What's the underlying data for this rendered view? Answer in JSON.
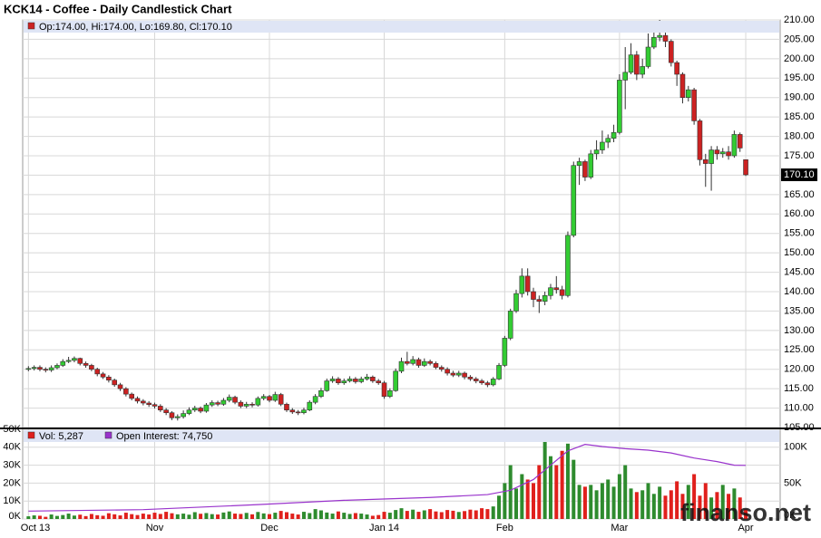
{
  "chart_data": [
    {
      "type": "candlestick",
      "title": "KCK14 - Coffee - Daily Candlestick Chart",
      "ohlc_label": "Op:174.00, Hi:174.00, Lo:169.80, Cl:170.10",
      "last_label": "170.10",
      "up_color": "#33cc33",
      "down_color": "#cc2222",
      "ylim": [
        105,
        210
      ],
      "yticks": [
        {
          "value": 105,
          "label": "105.00"
        },
        {
          "value": 110,
          "label": "110.00"
        },
        {
          "value": 115,
          "label": "115.00"
        },
        {
          "value": 120,
          "label": "120.00"
        },
        {
          "value": 125,
          "label": "125.00"
        },
        {
          "value": 130,
          "label": "130.00"
        },
        {
          "value": 135,
          "label": "135.00"
        },
        {
          "value": 140,
          "label": "140.00"
        },
        {
          "value": 145,
          "label": "145.00"
        },
        {
          "value": 150,
          "label": "150.00"
        },
        {
          "value": 155,
          "label": "155.00"
        },
        {
          "value": 160,
          "label": "160.00"
        },
        {
          "value": 165,
          "label": "165.00"
        },
        {
          "value": 170,
          "label": "170.00"
        },
        {
          "value": 175,
          "label": "175.00"
        },
        {
          "value": 180,
          "label": "180.00"
        },
        {
          "value": 185,
          "label": "185.00"
        },
        {
          "value": 190,
          "label": "190.00"
        },
        {
          "value": 195,
          "label": "195.00"
        },
        {
          "value": 200,
          "label": "200.00"
        },
        {
          "value": 205,
          "label": "205.00"
        },
        {
          "value": 210,
          "label": "210.00"
        }
      ],
      "grid": true,
      "open": [
        120.0,
        120.2,
        120.5,
        120.0,
        119.8,
        120.4,
        121.0,
        122.0,
        122.3,
        122.8,
        121.5,
        121.0,
        120.0,
        118.8,
        118.0,
        117.2,
        116.0,
        115.0,
        113.6,
        112.5,
        111.8,
        111.3,
        110.9,
        110.5,
        109.5,
        108.8,
        107.5,
        107.8,
        108.6,
        109.5,
        110.0,
        109.2,
        110.8,
        111.4,
        111.0,
        112.0,
        112.8,
        111.5,
        110.5,
        111.0,
        110.8,
        112.5,
        113.0,
        112.0,
        113.5,
        111.0,
        109.5,
        109.0,
        108.8,
        109.5,
        111.5,
        113.0,
        114.5,
        117.0,
        117.5,
        116.5,
        117.0,
        117.5,
        116.8,
        117.5,
        118.0,
        117.0,
        116.5,
        113.0,
        114.5,
        119.5,
        122.0,
        121.5,
        122.5,
        121.0,
        122.0,
        121.5,
        120.5,
        120.0,
        119.0,
        118.5,
        119.0,
        118.0,
        117.5,
        117.0,
        116.5,
        116.0,
        117.5,
        121.0,
        128.0,
        135.0,
        139.5,
        144.0,
        140.0,
        138.0,
        137.5,
        139.0,
        141.0,
        140.5,
        139.0,
        154.5,
        172.5,
        173.5,
        169.5,
        175.5,
        176.5,
        178.5,
        179.5,
        181.0,
        194.5,
        196.5,
        201.0,
        196.0,
        198.0,
        203.0,
        205.5,
        206.0,
        204.5,
        199.0,
        196.0,
        190.0,
        192.0,
        184.0,
        174.0,
        173.0,
        176.5,
        175.5,
        176.0,
        175.0,
        180.5,
        174.0
      ],
      "high": [
        120.8,
        121.0,
        121.0,
        120.5,
        121.0,
        121.5,
        122.6,
        123.2,
        123.3,
        123.0,
        122.0,
        121.4,
        120.4,
        119.3,
        118.5,
        117.6,
        116.5,
        115.4,
        114.0,
        113.0,
        112.3,
        111.8,
        111.4,
        111.0,
        110.0,
        109.2,
        108.4,
        109.4,
        110.2,
        110.6,
        110.4,
        111.3,
        112.0,
        111.9,
        112.6,
        113.5,
        113.2,
        112.0,
        111.6,
        111.5,
        113.0,
        113.6,
        113.4,
        114.2,
        113.9,
        111.4,
        110.0,
        109.5,
        110.1,
        112.0,
        113.6,
        115.2,
        117.6,
        118.2,
        118.0,
        117.6,
        118.2,
        118.0,
        118.1,
        118.8,
        118.4,
        117.5,
        117.0,
        115.1,
        120.2,
        123.0,
        124.5,
        123.4,
        123.0,
        122.8,
        122.5,
        122.0,
        121.0,
        120.5,
        119.6,
        119.6,
        119.4,
        118.5,
        118.0,
        117.5,
        117.0,
        118.0,
        121.6,
        128.6,
        135.6,
        140.5,
        146.0,
        146.0,
        141.0,
        139.0,
        140.0,
        142.0,
        144.0,
        141.5,
        155.5,
        173.5,
        174.5,
        174.0,
        176.5,
        179.0,
        181.5,
        180.5,
        183.0,
        196.0,
        203.0,
        204.0,
        202.0,
        200.0,
        206.5,
        209.0,
        210.0,
        207.0,
        205.0,
        199.5,
        196.5,
        193.0,
        192.5,
        184.5,
        175.5,
        177.5,
        177.5,
        177.0,
        177.5,
        181.5,
        181.0,
        174.0
      ],
      "low": [
        119.5,
        119.7,
        119.5,
        119.2,
        119.3,
        120.0,
        120.6,
        121.6,
        121.8,
        121.0,
        120.4,
        119.5,
        118.2,
        117.5,
        116.6,
        115.5,
        114.4,
        113.0,
        112.0,
        111.2,
        110.7,
        110.3,
        109.9,
        109.0,
        108.2,
        106.9,
        106.8,
        107.3,
        108.2,
        109.0,
        108.7,
        108.8,
        110.3,
        110.5,
        110.6,
        111.5,
        111.0,
        110.0,
        110.0,
        110.2,
        110.4,
        112.0,
        111.5,
        111.6,
        110.5,
        109.0,
        108.5,
        108.2,
        108.4,
        109.2,
        111.0,
        112.6,
        114.2,
        116.5,
        116.0,
        116.0,
        116.6,
        116.3,
        116.4,
        117.1,
        116.5,
        116.0,
        112.4,
        112.6,
        114.2,
        119.0,
        121.0,
        121.0,
        120.4,
        120.6,
        121.0,
        120.0,
        119.4,
        118.4,
        118.0,
        118.0,
        117.4,
        117.0,
        116.4,
        116.0,
        115.4,
        115.6,
        117.2,
        120.6,
        127.5,
        134.5,
        138.5,
        139.0,
        136.0,
        134.5,
        136.5,
        138.0,
        139.5,
        138.0,
        138.5,
        154.0,
        167.5,
        168.5,
        169.0,
        174.0,
        175.5,
        177.0,
        178.5,
        180.5,
        187.0,
        196.0,
        194.5,
        195.0,
        197.5,
        202.5,
        204.5,
        203.0,
        198.0,
        193.0,
        188.5,
        189.0,
        183.0,
        172.5,
        167.0,
        166.0,
        174.0,
        174.5,
        174.0,
        174.5,
        176.0,
        169.8
      ],
      "close": [
        120.2,
        120.5,
        120.0,
        119.8,
        120.4,
        121.0,
        122.0,
        122.3,
        122.8,
        121.5,
        121.0,
        120.0,
        118.8,
        118.0,
        117.2,
        116.0,
        115.0,
        113.6,
        112.5,
        111.8,
        111.3,
        110.9,
        110.5,
        109.5,
        108.8,
        107.5,
        107.8,
        108.6,
        109.5,
        110.0,
        109.2,
        110.8,
        111.4,
        111.0,
        112.0,
        112.8,
        111.5,
        110.5,
        111.0,
        110.8,
        112.5,
        113.0,
        112.0,
        113.5,
        111.0,
        109.5,
        109.0,
        108.8,
        109.5,
        111.5,
        113.0,
        114.5,
        117.0,
        117.5,
        116.5,
        117.0,
        117.5,
        116.8,
        117.5,
        118.0,
        117.0,
        116.5,
        113.0,
        114.5,
        119.5,
        122.0,
        121.5,
        122.5,
        121.0,
        122.0,
        121.5,
        120.5,
        120.0,
        119.0,
        118.5,
        119.0,
        118.0,
        117.5,
        117.0,
        116.5,
        116.0,
        117.5,
        121.0,
        128.0,
        135.0,
        139.5,
        144.0,
        140.0,
        138.0,
        137.5,
        139.0,
        141.0,
        140.5,
        139.0,
        154.5,
        172.5,
        173.5,
        169.5,
        175.5,
        176.5,
        178.5,
        179.5,
        181.0,
        194.5,
        196.5,
        201.0,
        196.0,
        198.0,
        203.0,
        205.5,
        206.0,
        204.5,
        199.0,
        196.0,
        190.0,
        192.0,
        184.0,
        174.0,
        173.0,
        176.5,
        175.5,
        176.0,
        175.0,
        180.5,
        177.0,
        170.1
      ]
    },
    {
      "type": "bar",
      "legend_labels": [
        "Vol: 5,287",
        "Open Interest: 74,750"
      ],
      "up_color": "#2e8b2e",
      "down_color": "#e0201c",
      "xlim": [
        -1,
        131
      ],
      "xticks": [
        {
          "value": 0,
          "label": "Oct 13"
        },
        {
          "value": 22,
          "label": "Nov"
        },
        {
          "value": 42,
          "label": "Dec"
        },
        {
          "value": 62,
          "label": "Jan 14"
        },
        {
          "value": 83,
          "label": "Feb"
        },
        {
          "value": 103,
          "label": "Mar"
        },
        {
          "value": 125,
          "label": "Apr"
        }
      ],
      "ylim": [
        0,
        50000
      ],
      "yticks": [
        {
          "value": 0,
          "label": "0K"
        },
        {
          "value": 10000,
          "label": "10K"
        },
        {
          "value": 20000,
          "label": "20K"
        },
        {
          "value": 30000,
          "label": "30K"
        },
        {
          "value": 40000,
          "label": "40K"
        },
        {
          "value": 50000,
          "label": "50K"
        }
      ],
      "y2lim": [
        0,
        125000
      ],
      "y2ticks": [
        {
          "value": 0,
          "label": "0K"
        },
        {
          "value": 50000,
          "label": "50K"
        },
        {
          "value": 100000,
          "label": "100K"
        }
      ],
      "series": [
        {
          "name": "Vol",
          "values": [
            1500,
            2000,
            1800,
            1200,
            2500,
            1700,
            2200,
            3000,
            1900,
            2400,
            1600,
            2800,
            2100,
            1800,
            3200,
            2600,
            2000,
            3500,
            2700,
            2200,
            3000,
            2500,
            3500,
            2800,
            4000,
            3200,
            2600,
            3000,
            2400,
            3800,
            2900,
            3300,
            2700,
            2500,
            3600,
            4200,
            3000,
            2800,
            3400,
            2600,
            3900,
            3100,
            2700,
            3500,
            4500,
            3800,
            3000,
            2500,
            4000,
            3300,
            5500,
            4800,
            3600,
            3000,
            4200,
            3500,
            2800,
            3300,
            3000,
            2500,
            1800,
            2200,
            4000,
            3500,
            5000,
            6000,
            4500,
            5200,
            4000,
            4800,
            5500,
            4200,
            3800,
            5000,
            4600,
            3900,
            4400,
            5200,
            4800,
            6000,
            5500,
            7000,
            13000,
            20000,
            30000,
            17000,
            25000,
            22000,
            20000,
            30000,
            44000,
            35000,
            30000,
            38000,
            42000,
            33000,
            19000,
            18000,
            19000,
            16000,
            20000,
            22000,
            18000,
            25000,
            30000,
            17000,
            15000,
            16000,
            20000,
            14000,
            18000,
            13000,
            16000,
            21000,
            14000,
            19000,
            25000,
            13000,
            20000,
            12000,
            15000,
            19000,
            14000,
            17000,
            12000,
            5287
          ]
        },
        {
          "name": "Open Interest",
          "axis": "y2",
          "color": "#9933cc",
          "x": [
            0,
            20,
            40,
            55,
            70,
            80,
            84,
            88,
            91,
            94,
            97,
            100,
            104,
            108,
            112,
            116,
            120,
            123,
            125
          ],
          "values": [
            11000,
            13000,
            20000,
            26000,
            30000,
            34000,
            40000,
            55000,
            75000,
            95000,
            104000,
            101000,
            98000,
            96000,
            92000,
            85000,
            80000,
            75000,
            74750
          ]
        }
      ],
      "watermark": "finanso.net"
    }
  ]
}
